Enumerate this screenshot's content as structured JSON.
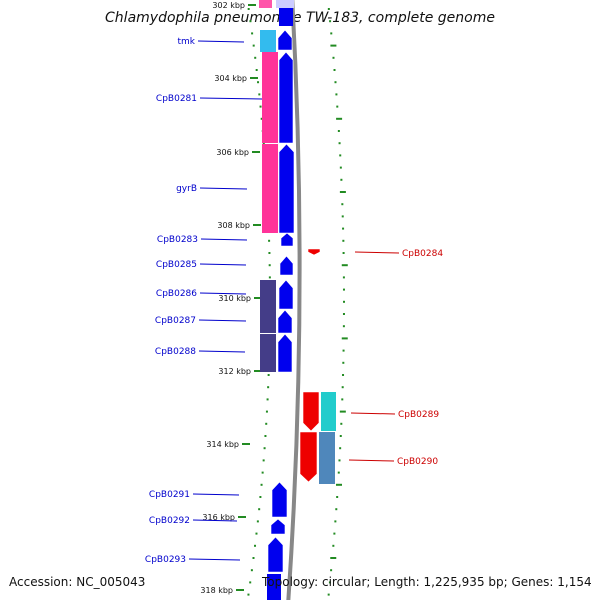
{
  "title": "Chlamydophila pneumoniae TW-183, complete genome",
  "accession": "Accession: NC_005043",
  "topology": "Topology: circular; Length: 1,225,935 bp; Genes: 1,154",
  "colors": {
    "forward_gene": "#0000ee",
    "reverse_gene": "#ee0000",
    "forward_label": "#0000cc",
    "reverse_label": "#cc0000",
    "tick": "#228b22",
    "backbone": "#888888"
  },
  "kbp_ticks": [
    "302 kbp",
    "304 kbp",
    "306 kbp",
    "308 kbp",
    "310 kbp",
    "312 kbp",
    "314 kbp",
    "316 kbp",
    "318 kbp"
  ],
  "forward_genes": [
    "tmk",
    "CpB0281",
    "gyrB",
    "CpB0283",
    "CpB0285",
    "CpB0286",
    "CpB0287",
    "CpB0288",
    "CpB0291",
    "CpB0292",
    "CpB0293"
  ],
  "reverse_genes": [
    "CpB0284",
    "CpB0289",
    "CpB0290"
  ],
  "cog_track_colors": {
    "tmk": "#33bbee",
    "CpB0281": "#ff3399",
    "gyrB": "#ff3399",
    "CpB0286": "#443d88",
    "CpB0287": "#443d88",
    "CpB0288": "#443d88",
    "CpB0289": "#22cccc",
    "CpB0290": "#4f87bb"
  }
}
